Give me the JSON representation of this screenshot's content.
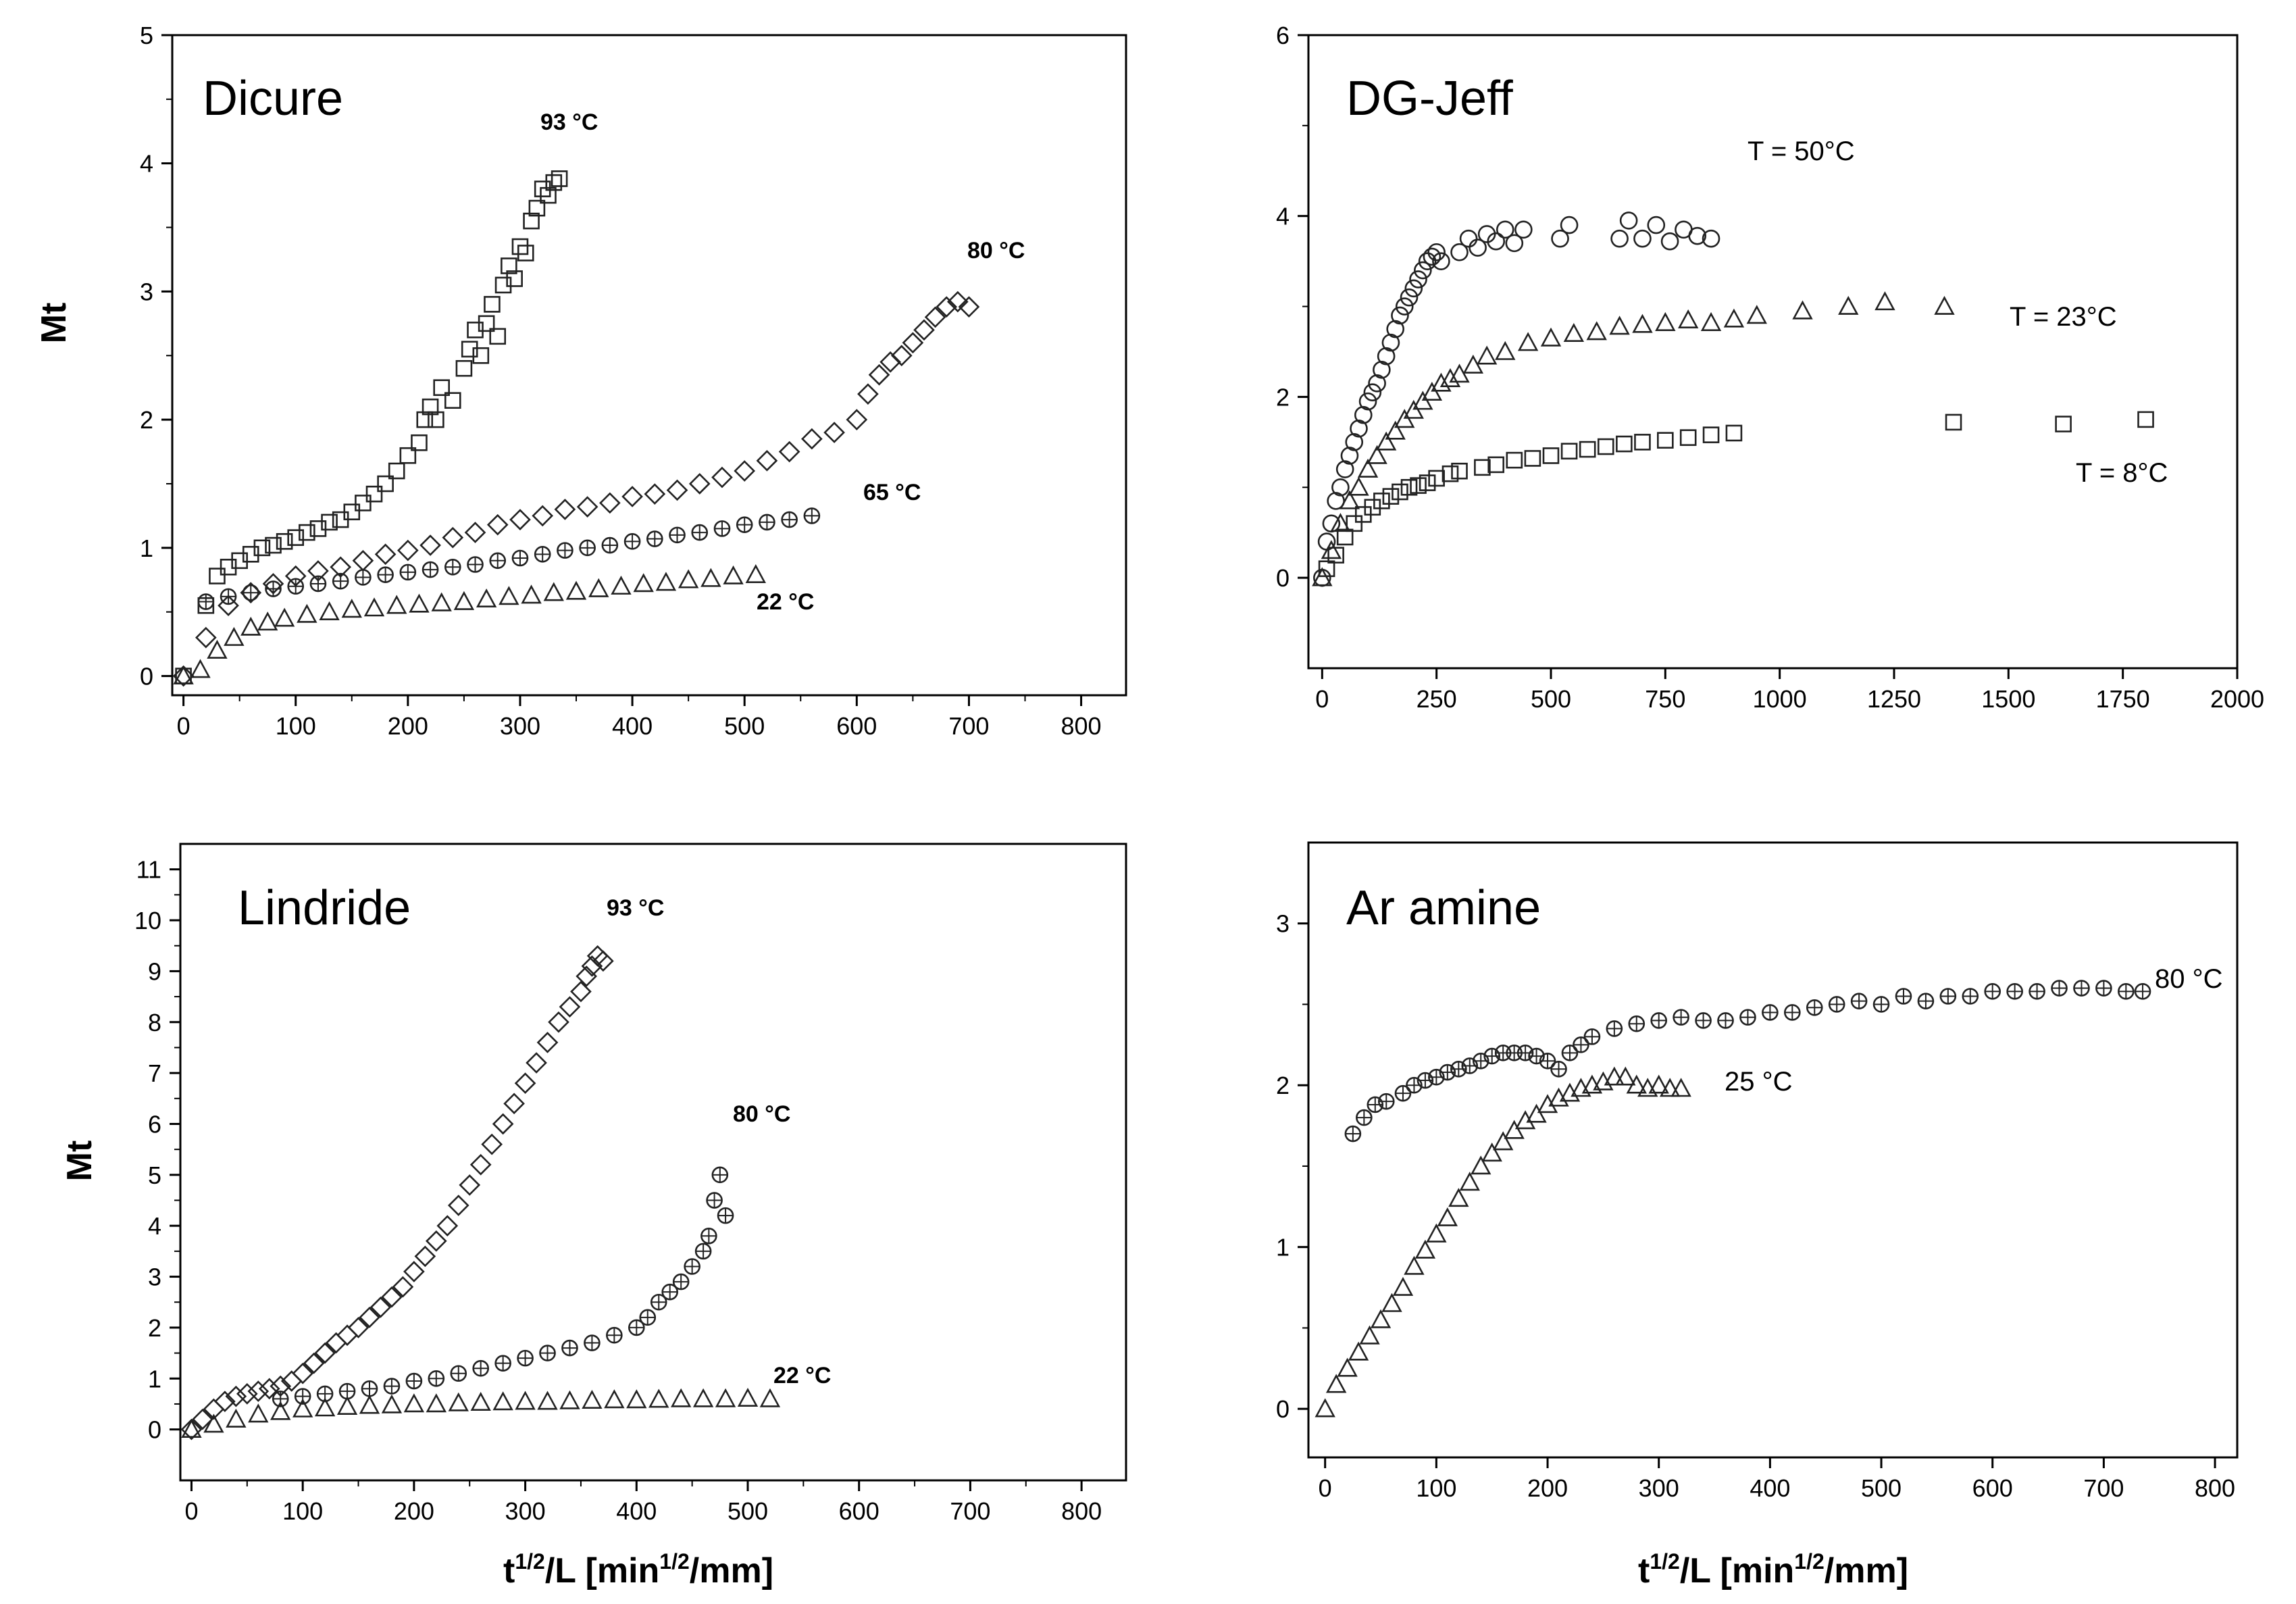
{
  "figure": {
    "y_label": "Mt",
    "x_label_prefix": "t",
    "x_label_sup1": "1/2",
    "x_label_mid": "/L [min",
    "x_label_sup2": "1/2",
    "x_label_end": "/mm]"
  },
  "chart_data": [
    {
      "type": "scatter",
      "title": "Dicure",
      "xlabel": "",
      "ylabel": "Mt",
      "xlim": [
        -10,
        840
      ],
      "ylim": [
        -0.15,
        5
      ],
      "xticks": [
        "0",
        "100",
        "200",
        "300",
        "400",
        "500",
        "600",
        "700",
        "800"
      ],
      "yticks": [
        "0",
        "1",
        "2",
        "3",
        "4",
        "5"
      ],
      "series": [
        {
          "name": "93 °C",
          "marker": "square",
          "x": [
            0,
            20,
            30,
            40,
            50,
            60,
            70,
            80,
            90,
            100,
            110,
            120,
            130,
            140,
            150,
            160,
            170,
            180,
            190,
            200,
            210,
            215,
            220,
            225,
            230,
            240,
            250,
            255,
            260,
            265,
            270,
            275,
            280,
            285,
            290,
            295,
            300,
            305,
            310,
            315,
            320,
            325,
            330,
            335
          ],
          "y": [
            0,
            0.55,
            0.78,
            0.85,
            0.9,
            0.95,
            1.0,
            1.02,
            1.05,
            1.08,
            1.12,
            1.15,
            1.2,
            1.22,
            1.28,
            1.35,
            1.42,
            1.5,
            1.6,
            1.72,
            1.82,
            2.0,
            2.1,
            2.0,
            2.25,
            2.15,
            2.4,
            2.55,
            2.7,
            2.5,
            2.75,
            2.9,
            2.65,
            3.05,
            3.2,
            3.1,
            3.35,
            3.3,
            3.55,
            3.65,
            3.8,
            3.75,
            3.85,
            3.88
          ]
        },
        {
          "name": "80 °C",
          "marker": "diamond",
          "x": [
            0,
            20,
            40,
            60,
            80,
            100,
            120,
            140,
            160,
            180,
            200,
            220,
            240,
            260,
            280,
            300,
            320,
            340,
            360,
            380,
            400,
            420,
            440,
            460,
            480,
            500,
            520,
            540,
            560,
            580,
            600,
            610,
            620,
            630,
            640,
            650,
            660,
            670,
            680,
            690,
            700
          ],
          "y": [
            0,
            0.3,
            0.55,
            0.65,
            0.72,
            0.78,
            0.82,
            0.85,
            0.9,
            0.95,
            0.98,
            1.02,
            1.08,
            1.12,
            1.18,
            1.22,
            1.25,
            1.3,
            1.32,
            1.35,
            1.4,
            1.42,
            1.45,
            1.5,
            1.55,
            1.6,
            1.68,
            1.75,
            1.85,
            1.9,
            2.0,
            2.2,
            2.35,
            2.45,
            2.5,
            2.6,
            2.7,
            2.8,
            2.88,
            2.92,
            2.88
          ]
        },
        {
          "name": "65 °C",
          "marker": "crossed-circle",
          "x": [
            20,
            40,
            60,
            80,
            100,
            120,
            140,
            160,
            180,
            200,
            220,
            240,
            260,
            280,
            300,
            320,
            340,
            360,
            380,
            400,
            420,
            440,
            460,
            480,
            500,
            520,
            540,
            560
          ],
          "y": [
            0.58,
            0.62,
            0.65,
            0.68,
            0.7,
            0.72,
            0.74,
            0.77,
            0.79,
            0.81,
            0.83,
            0.85,
            0.87,
            0.9,
            0.92,
            0.95,
            0.98,
            1.0,
            1.02,
            1.05,
            1.07,
            1.1,
            1.12,
            1.15,
            1.18,
            1.2,
            1.22,
            1.25
          ]
        },
        {
          "name": "22 °C",
          "marker": "triangle",
          "x": [
            0,
            15,
            30,
            45,
            60,
            75,
            90,
            110,
            130,
            150,
            170,
            190,
            210,
            230,
            250,
            270,
            290,
            310,
            330,
            350,
            370,
            390,
            410,
            430,
            450,
            470,
            490,
            510
          ],
          "y": [
            0,
            0.05,
            0.2,
            0.3,
            0.38,
            0.42,
            0.45,
            0.48,
            0.5,
            0.52,
            0.53,
            0.55,
            0.56,
            0.57,
            0.58,
            0.6,
            0.62,
            0.63,
            0.65,
            0.66,
            0.68,
            0.7,
            0.72,
            0.73,
            0.75,
            0.76,
            0.78,
            0.79
          ]
        }
      ],
      "annotations": [
        "93 °C",
        "80 °C",
        "65 °C",
        "22 °C"
      ]
    },
    {
      "type": "scatter",
      "title": "DG-Jeff",
      "xlabel": "",
      "ylabel": "",
      "xlim": [
        -30,
        2000
      ],
      "ylim": [
        -1,
        6
      ],
      "xticks": [
        "0",
        "250",
        "500",
        "750",
        "1000",
        "1250",
        "1500",
        "1750",
        "2000"
      ],
      "yticks": [
        "0",
        "2",
        "4",
        "6"
      ],
      "series": [
        {
          "name": "T = 50°C",
          "marker": "circle",
          "x": [
            0,
            10,
            20,
            30,
            40,
            50,
            60,
            70,
            80,
            90,
            100,
            110,
            120,
            130,
            140,
            150,
            160,
            170,
            180,
            190,
            200,
            210,
            220,
            230,
            240,
            250,
            260,
            300,
            320,
            340,
            360,
            380,
            400,
            420,
            440,
            520,
            540,
            650,
            670,
            700,
            730,
            760,
            790,
            820,
            850
          ],
          "y": [
            0,
            0.4,
            0.6,
            0.85,
            1.0,
            1.2,
            1.35,
            1.5,
            1.65,
            1.8,
            1.95,
            2.05,
            2.15,
            2.3,
            2.45,
            2.6,
            2.75,
            2.9,
            3.0,
            3.1,
            3.2,
            3.3,
            3.4,
            3.5,
            3.55,
            3.6,
            3.5,
            3.6,
            3.75,
            3.65,
            3.8,
            3.72,
            3.85,
            3.7,
            3.85,
            3.75,
            3.9,
            3.75,
            3.95,
            3.75,
            3.9,
            3.72,
            3.85,
            3.78,
            3.75
          ]
        },
        {
          "name": "T = 23°C",
          "marker": "triangle",
          "x": [
            0,
            20,
            40,
            60,
            80,
            100,
            120,
            140,
            160,
            180,
            200,
            220,
            240,
            260,
            280,
            300,
            330,
            360,
            400,
            450,
            500,
            550,
            600,
            650,
            700,
            750,
            800,
            850,
            900,
            950,
            1050,
            1150,
            1230,
            1360
          ],
          "y": [
            0,
            0.3,
            0.6,
            0.85,
            1.0,
            1.2,
            1.35,
            1.5,
            1.62,
            1.75,
            1.85,
            1.95,
            2.05,
            2.15,
            2.2,
            2.25,
            2.35,
            2.45,
            2.5,
            2.6,
            2.65,
            2.7,
            2.72,
            2.78,
            2.8,
            2.82,
            2.85,
            2.82,
            2.86,
            2.9,
            2.95,
            3.0,
            3.05,
            3.0
          ]
        },
        {
          "name": "T = 8°C",
          "marker": "square",
          "x": [
            10,
            30,
            50,
            70,
            90,
            110,
            130,
            150,
            170,
            190,
            210,
            230,
            250,
            280,
            300,
            350,
            380,
            420,
            460,
            500,
            540,
            580,
            620,
            660,
            700,
            750,
            800,
            850,
            900,
            1380,
            1620,
            1800
          ],
          "y": [
            0.1,
            0.25,
            0.45,
            0.6,
            0.7,
            0.78,
            0.85,
            0.9,
            0.95,
            1.0,
            1.02,
            1.05,
            1.1,
            1.15,
            1.18,
            1.22,
            1.25,
            1.3,
            1.32,
            1.35,
            1.4,
            1.42,
            1.45,
            1.48,
            1.5,
            1.52,
            1.55,
            1.58,
            1.6,
            1.72,
            1.7,
            1.75
          ]
        }
      ],
      "annotations": [
        "T = 50°C",
        "T = 23°C",
        "T = 8°C"
      ]
    },
    {
      "type": "scatter",
      "title": "Lindride",
      "xlabel": "t1/2/L [min1/2/mm]",
      "ylabel": "Mt",
      "xlim": [
        -10,
        840
      ],
      "ylim": [
        -1,
        11.5
      ],
      "xticks": [
        "0",
        "100",
        "200",
        "300",
        "400",
        "500",
        "600",
        "700",
        "800"
      ],
      "yticks": [
        "0",
        "1",
        "2",
        "3",
        "4",
        "5",
        "6",
        "7",
        "8",
        "9",
        "10",
        "11"
      ],
      "series": [
        {
          "name": "93 °C",
          "marker": "diamond",
          "x": [
            0,
            10,
            20,
            30,
            40,
            50,
            60,
            70,
            80,
            90,
            100,
            110,
            120,
            130,
            140,
            150,
            160,
            170,
            180,
            190,
            200,
            210,
            220,
            230,
            240,
            250,
            260,
            270,
            280,
            290,
            300,
            310,
            320,
            330,
            340,
            350,
            355,
            360,
            365,
            370
          ],
          "y": [
            0,
            0.2,
            0.4,
            0.55,
            0.65,
            0.7,
            0.75,
            0.8,
            0.85,
            0.95,
            1.1,
            1.3,
            1.5,
            1.7,
            1.85,
            2.0,
            2.2,
            2.4,
            2.6,
            2.8,
            3.1,
            3.4,
            3.7,
            4.0,
            4.4,
            4.8,
            5.2,
            5.6,
            6.0,
            6.4,
            6.8,
            7.2,
            7.6,
            8.0,
            8.3,
            8.6,
            8.9,
            9.1,
            9.3,
            9.2
          ]
        },
        {
          "name": "80 °C",
          "marker": "crossed-circle",
          "x": [
            80,
            100,
            120,
            140,
            160,
            180,
            200,
            220,
            240,
            260,
            280,
            300,
            320,
            340,
            360,
            380,
            400,
            410,
            420,
            430,
            440,
            450,
            460,
            465,
            470,
            475,
            480
          ],
          "y": [
            0.6,
            0.65,
            0.7,
            0.75,
            0.8,
            0.85,
            0.95,
            1.0,
            1.1,
            1.2,
            1.3,
            1.4,
            1.5,
            1.6,
            1.7,
            1.85,
            2.0,
            2.2,
            2.5,
            2.7,
            2.9,
            3.2,
            3.5,
            3.8,
            4.5,
            5.0,
            4.2
          ]
        },
        {
          "name": "22 °C",
          "marker": "triangle",
          "x": [
            0,
            20,
            40,
            60,
            80,
            100,
            120,
            140,
            160,
            180,
            200,
            220,
            240,
            260,
            280,
            300,
            320,
            340,
            360,
            380,
            400,
            420,
            440,
            460,
            480,
            500,
            520
          ],
          "y": [
            0,
            0.1,
            0.2,
            0.3,
            0.35,
            0.4,
            0.42,
            0.45,
            0.47,
            0.48,
            0.5,
            0.5,
            0.52,
            0.53,
            0.54,
            0.55,
            0.55,
            0.56,
            0.57,
            0.58,
            0.58,
            0.59,
            0.6,
            0.6,
            0.6,
            0.61,
            0.6
          ]
        }
      ],
      "annotations": [
        "93 °C",
        "80 °C",
        "22 °C"
      ]
    },
    {
      "type": "scatter",
      "title": "Ar amine",
      "xlabel": "t1/2/L [min1/2/mm]",
      "ylabel": "",
      "xlim": [
        -15,
        820
      ],
      "ylim": [
        -0.3,
        3.5
      ],
      "xticks": [
        "0",
        "100",
        "200",
        "300",
        "400",
        "500",
        "600",
        "700",
        "800"
      ],
      "yticks": [
        "0",
        "1",
        "2",
        "3"
      ],
      "series": [
        {
          "name": "80 °C",
          "marker": "crossed-circle",
          "x": [
            25,
            35,
            45,
            55,
            70,
            80,
            90,
            100,
            110,
            120,
            130,
            140,
            150,
            160,
            170,
            180,
            190,
            200,
            210,
            220,
            230,
            240,
            260,
            280,
            300,
            320,
            340,
            360,
            380,
            400,
            420,
            440,
            460,
            480,
            500,
            520,
            540,
            560,
            580,
            600,
            620,
            640,
            660,
            680,
            700,
            720,
            735
          ],
          "y": [
            1.7,
            1.8,
            1.88,
            1.9,
            1.95,
            2.0,
            2.03,
            2.05,
            2.08,
            2.1,
            2.12,
            2.15,
            2.18,
            2.2,
            2.2,
            2.2,
            2.18,
            2.15,
            2.1,
            2.2,
            2.25,
            2.3,
            2.35,
            2.38,
            2.4,
            2.42,
            2.4,
            2.4,
            2.42,
            2.45,
            2.45,
            2.48,
            2.5,
            2.52,
            2.5,
            2.55,
            2.52,
            2.55,
            2.55,
            2.58,
            2.58,
            2.58,
            2.6,
            2.6,
            2.6,
            2.58,
            2.58
          ]
        },
        {
          "name": "25 °C",
          "marker": "triangle",
          "x": [
            0,
            10,
            20,
            30,
            40,
            50,
            60,
            70,
            80,
            90,
            100,
            110,
            120,
            130,
            140,
            150,
            160,
            170,
            180,
            190,
            200,
            210,
            220,
            230,
            240,
            250,
            260,
            270,
            280,
            290,
            300,
            310,
            320
          ],
          "y": [
            0,
            0.15,
            0.25,
            0.35,
            0.45,
            0.55,
            0.65,
            0.75,
            0.88,
            0.98,
            1.08,
            1.18,
            1.3,
            1.4,
            1.5,
            1.58,
            1.65,
            1.72,
            1.78,
            1.82,
            1.88,
            1.92,
            1.95,
            1.98,
            2.0,
            2.02,
            2.05,
            2.05,
            2.0,
            1.98,
            2.0,
            1.98,
            1.98
          ]
        }
      ],
      "annotations": [
        "80 °C",
        "25 °C"
      ]
    }
  ]
}
